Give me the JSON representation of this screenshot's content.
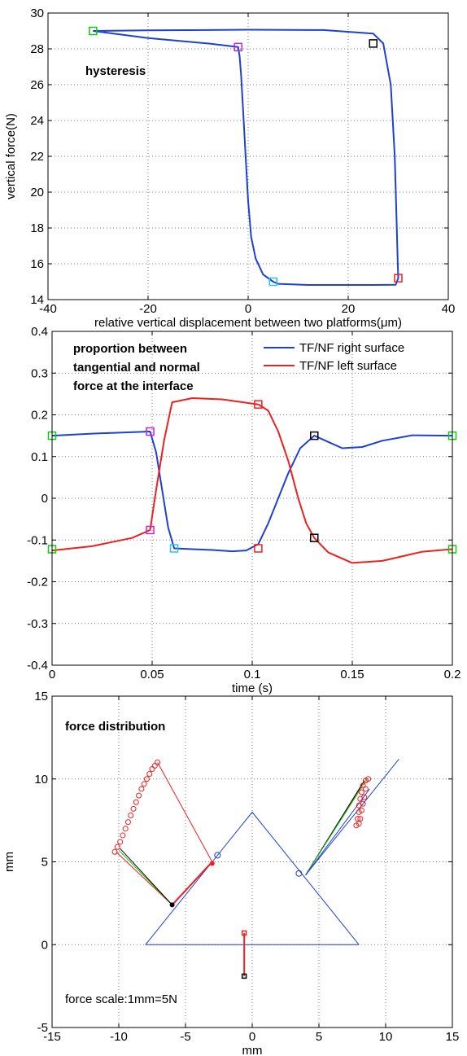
{
  "colors": {
    "blue": "#1f3fd6",
    "red": "#ee2020",
    "green": "#14c814",
    "magenta": "#cc22cc",
    "cyan": "#22c8e6",
    "black": "#000000",
    "grid": "#7a7a7a"
  },
  "chart_data": [
    {
      "type": "line",
      "xlabel": "relative vertical displacement between two platforms(μm)",
      "ylabel": "vertical force(N)",
      "annotation": "hysteresis",
      "xlim": [
        -40,
        40
      ],
      "ylim": [
        14,
        30
      ],
      "xticks": [
        -40,
        -20,
        0,
        20,
        40
      ],
      "yticks": [
        14,
        16,
        18,
        20,
        22,
        24,
        26,
        28,
        30
      ],
      "grid": true,
      "series": [
        {
          "color": "blue",
          "points": [
            [
              -31,
              29.0
            ],
            [
              -20,
              29.03
            ],
            [
              0,
              29.07
            ],
            [
              15,
              29.05
            ],
            [
              25,
              28.85
            ],
            [
              27,
              28.3
            ],
            [
              28.5,
              26.0
            ],
            [
              29.3,
              22.0
            ],
            [
              29.7,
              18.0
            ],
            [
              29.9,
              16.0
            ],
            [
              30,
              15.2
            ],
            [
              29.5,
              14.83
            ],
            [
              25,
              14.82
            ],
            [
              20,
              14.82
            ],
            [
              12,
              14.82
            ],
            [
              6,
              14.88
            ],
            [
              5,
              15.0
            ],
            [
              3,
              15.4
            ],
            [
              1.5,
              16.3
            ],
            [
              0.6,
              17.5
            ],
            [
              0,
              19.5
            ],
            [
              -0.5,
              22.0
            ],
            [
              -1,
              24.5
            ],
            [
              -1.4,
              26.5
            ],
            [
              -1.7,
              27.6
            ],
            [
              -2,
              28.1
            ],
            [
              -8,
              28.3
            ],
            [
              -20,
              28.6
            ],
            [
              -31,
              29.0
            ]
          ]
        }
      ],
      "markers": [
        {
          "x": -31,
          "y": 29.0,
          "color": "green"
        },
        {
          "x": -2,
          "y": 28.1,
          "color": "magenta"
        },
        {
          "x": 25,
          "y": 28.3,
          "color": "black"
        },
        {
          "x": 5,
          "y": 15.0,
          "color": "cyan"
        },
        {
          "x": 30,
          "y": 15.2,
          "color": "red"
        }
      ]
    },
    {
      "type": "line",
      "xlabel": "time (s)",
      "ylabel": "",
      "annotation": [
        "proportion between",
        "tangential and normal",
        "force at the interface"
      ],
      "xlim": [
        0,
        0.2
      ],
      "ylim": [
        -0.4,
        0.4
      ],
      "xticks": [
        0,
        0.05,
        0.1,
        0.15,
        0.2
      ],
      "yticks": [
        -0.4,
        -0.3,
        -0.2,
        -0.1,
        0,
        0.1,
        0.2,
        0.3,
        0.4
      ],
      "grid": true,
      "legend_position": "top-right",
      "series": [
        {
          "name": "TF/NF right surface",
          "color": "blue",
          "points": [
            [
              0,
              0.15
            ],
            [
              0.02,
              0.155
            ],
            [
              0.049,
              0.16
            ],
            [
              0.052,
              0.11
            ],
            [
              0.055,
              0.02
            ],
            [
              0.058,
              -0.07
            ],
            [
              0.061,
              -0.12
            ],
            [
              0.07,
              -0.122
            ],
            [
              0.08,
              -0.124
            ],
            [
              0.09,
              -0.127
            ],
            [
              0.097,
              -0.125
            ],
            [
              0.103,
              -0.11
            ],
            [
              0.108,
              -0.06
            ],
            [
              0.113,
              0.0
            ],
            [
              0.118,
              0.06
            ],
            [
              0.124,
              0.12
            ],
            [
              0.131,
              0.15
            ],
            [
              0.138,
              0.135
            ],
            [
              0.145,
              0.12
            ],
            [
              0.155,
              0.123
            ],
            [
              0.165,
              0.138
            ],
            [
              0.18,
              0.151
            ],
            [
              0.2,
              0.15
            ]
          ]
        },
        {
          "name": "TF/NF left surface",
          "color": "red",
          "points": [
            [
              0,
              -0.125
            ],
            [
              0.02,
              -0.115
            ],
            [
              0.04,
              -0.095
            ],
            [
              0.049,
              -0.076
            ],
            [
              0.052,
              0.02
            ],
            [
              0.056,
              0.14
            ],
            [
              0.06,
              0.23
            ],
            [
              0.07,
              0.24
            ],
            [
              0.085,
              0.237
            ],
            [
              0.103,
              0.225
            ],
            [
              0.108,
              0.21
            ],
            [
              0.113,
              0.16
            ],
            [
              0.118,
              0.09
            ],
            [
              0.123,
              0.0
            ],
            [
              0.127,
              -0.06
            ],
            [
              0.131,
              -0.095
            ],
            [
              0.138,
              -0.13
            ],
            [
              0.15,
              -0.155
            ],
            [
              0.165,
              -0.15
            ],
            [
              0.185,
              -0.128
            ],
            [
              0.2,
              -0.122
            ]
          ]
        }
      ],
      "markers": [
        {
          "x": 0,
          "y": 0.15,
          "color": "green"
        },
        {
          "x": 0,
          "y": -0.122,
          "color": "green"
        },
        {
          "x": 0.049,
          "y": 0.16,
          "color": "magenta"
        },
        {
          "x": 0.049,
          "y": -0.076,
          "color": "magenta"
        },
        {
          "x": 0.061,
          "y": -0.12,
          "color": "cyan"
        },
        {
          "x": 0.103,
          "y": 0.225,
          "color": "red"
        },
        {
          "x": 0.103,
          "y": -0.12,
          "color": "red"
        },
        {
          "x": 0.131,
          "y": 0.15,
          "color": "black"
        },
        {
          "x": 0.131,
          "y": -0.095,
          "color": "black"
        },
        {
          "x": 0.2,
          "y": 0.15,
          "color": "green"
        },
        {
          "x": 0.2,
          "y": -0.122,
          "color": "green"
        }
      ]
    },
    {
      "type": "scatter",
      "xlabel": "mm",
      "ylabel": "mm",
      "annotation": "force distribution",
      "note": "force scale:1mm=5N",
      "xlim": [
        -15,
        15
      ],
      "ylim": [
        -5,
        15
      ],
      "xticks": [
        -15,
        -10,
        -5,
        0,
        5,
        10,
        15
      ],
      "yticks": [
        -5,
        0,
        5,
        10,
        15
      ],
      "grid": true,
      "segments": [
        {
          "color": "blue",
          "width": 1,
          "points": [
            [
              -8,
              0
            ],
            [
              8,
              0
            ]
          ]
        },
        {
          "color": "blue",
          "width": 1,
          "points": [
            [
              -8,
              0
            ],
            [
              0,
              8
            ]
          ]
        },
        {
          "color": "blue",
          "width": 1,
          "points": [
            [
              0,
              8
            ],
            [
              8,
              0
            ]
          ]
        },
        {
          "color": "blue",
          "width": 1,
          "points": [
            [
              4,
              4.2
            ],
            [
              11,
              11.2
            ]
          ]
        },
        {
          "color": "red",
          "width": 1,
          "points": [
            [
              -10.2,
              5.6
            ],
            [
              -6,
              2.4
            ]
          ]
        },
        {
          "color": "green",
          "width": 1,
          "points": [
            [
              -10,
              5.7
            ],
            [
              -6,
              2.4
            ]
          ]
        },
        {
          "color": "black",
          "width": 1,
          "points": [
            [
              -9.9,
              5.8
            ],
            [
              -6,
              2.4
            ]
          ]
        },
        {
          "color": "red",
          "width": 1,
          "points": [
            [
              -7.1,
              11
            ],
            [
              -3,
              5
            ]
          ]
        },
        {
          "color": "red",
          "width": 2,
          "points": [
            [
              -3,
              5
            ],
            [
              -6,
              2.4
            ]
          ]
        },
        {
          "color": "red",
          "width": 1,
          "points": [
            [
              4,
              4.2
            ],
            [
              8.2,
              9.6
            ]
          ]
        },
        {
          "color": "black",
          "width": 1,
          "points": [
            [
              4,
              4.2
            ],
            [
              8.4,
              9.9
            ]
          ]
        },
        {
          "color": "green",
          "width": 1,
          "points": [
            [
              4,
              4.2
            ],
            [
              8.6,
              10
            ]
          ]
        },
        {
          "color": "blue",
          "width": 1,
          "points": [
            [
              4,
              4.2
            ],
            [
              8.8,
              9.4
            ]
          ]
        },
        {
          "color": "red",
          "width": 2,
          "points": [
            [
              -0.6,
              0.7
            ],
            [
              -0.6,
              -1.9
            ]
          ]
        }
      ],
      "circles": [
        {
          "x": -2.6,
          "y": 5.4,
          "color": "blue"
        },
        {
          "x": 3.5,
          "y": 4.3,
          "color": "blue"
        }
      ],
      "circle_series": [
        {
          "color": "red",
          "points": [
            [
              -10.3,
              5.6
            ],
            [
              -10.1,
              5.9
            ],
            [
              -9.9,
              6.2
            ],
            [
              -9.7,
              6.6
            ],
            [
              -9.5,
              7.0
            ],
            [
              -9.3,
              7.4
            ],
            [
              -9.1,
              7.8
            ],
            [
              -8.9,
              8.2
            ],
            [
              -8.7,
              8.6
            ],
            [
              -8.5,
              9.0
            ],
            [
              -8.3,
              9.4
            ],
            [
              -8.1,
              9.7
            ],
            [
              -7.9,
              10.0
            ],
            [
              -7.7,
              10.3
            ],
            [
              -7.5,
              10.6
            ],
            [
              -7.3,
              10.8
            ],
            [
              -7.1,
              11.0
            ]
          ]
        },
        {
          "color": "red",
          "points": [
            [
              7.8,
              7.2
            ],
            [
              7.9,
              7.6
            ],
            [
              8.0,
              8.0
            ],
            [
              8.0,
              8.4
            ],
            [
              8.1,
              8.8
            ],
            [
              8.2,
              9.2
            ],
            [
              8.3,
              9.6
            ],
            [
              8.5,
              9.9
            ],
            [
              8.7,
              10.0
            ],
            [
              8.5,
              9.4
            ],
            [
              8.4,
              8.9
            ],
            [
              8.3,
              8.5
            ],
            [
              8.2,
              8.1
            ],
            [
              8.1,
              7.6
            ],
            [
              8.0,
              7.3
            ]
          ]
        }
      ],
      "markers": [
        {
          "x": -6,
          "y": 2.4,
          "shape": "dot",
          "color": "black"
        },
        {
          "x": -3,
          "y": 4.9,
          "shape": "dot",
          "color": "red"
        },
        {
          "x": -0.6,
          "y": 0.7,
          "shape": "square",
          "color": "red"
        },
        {
          "x": -0.6,
          "y": -1.9,
          "shape": "square",
          "color": "black"
        }
      ]
    }
  ]
}
